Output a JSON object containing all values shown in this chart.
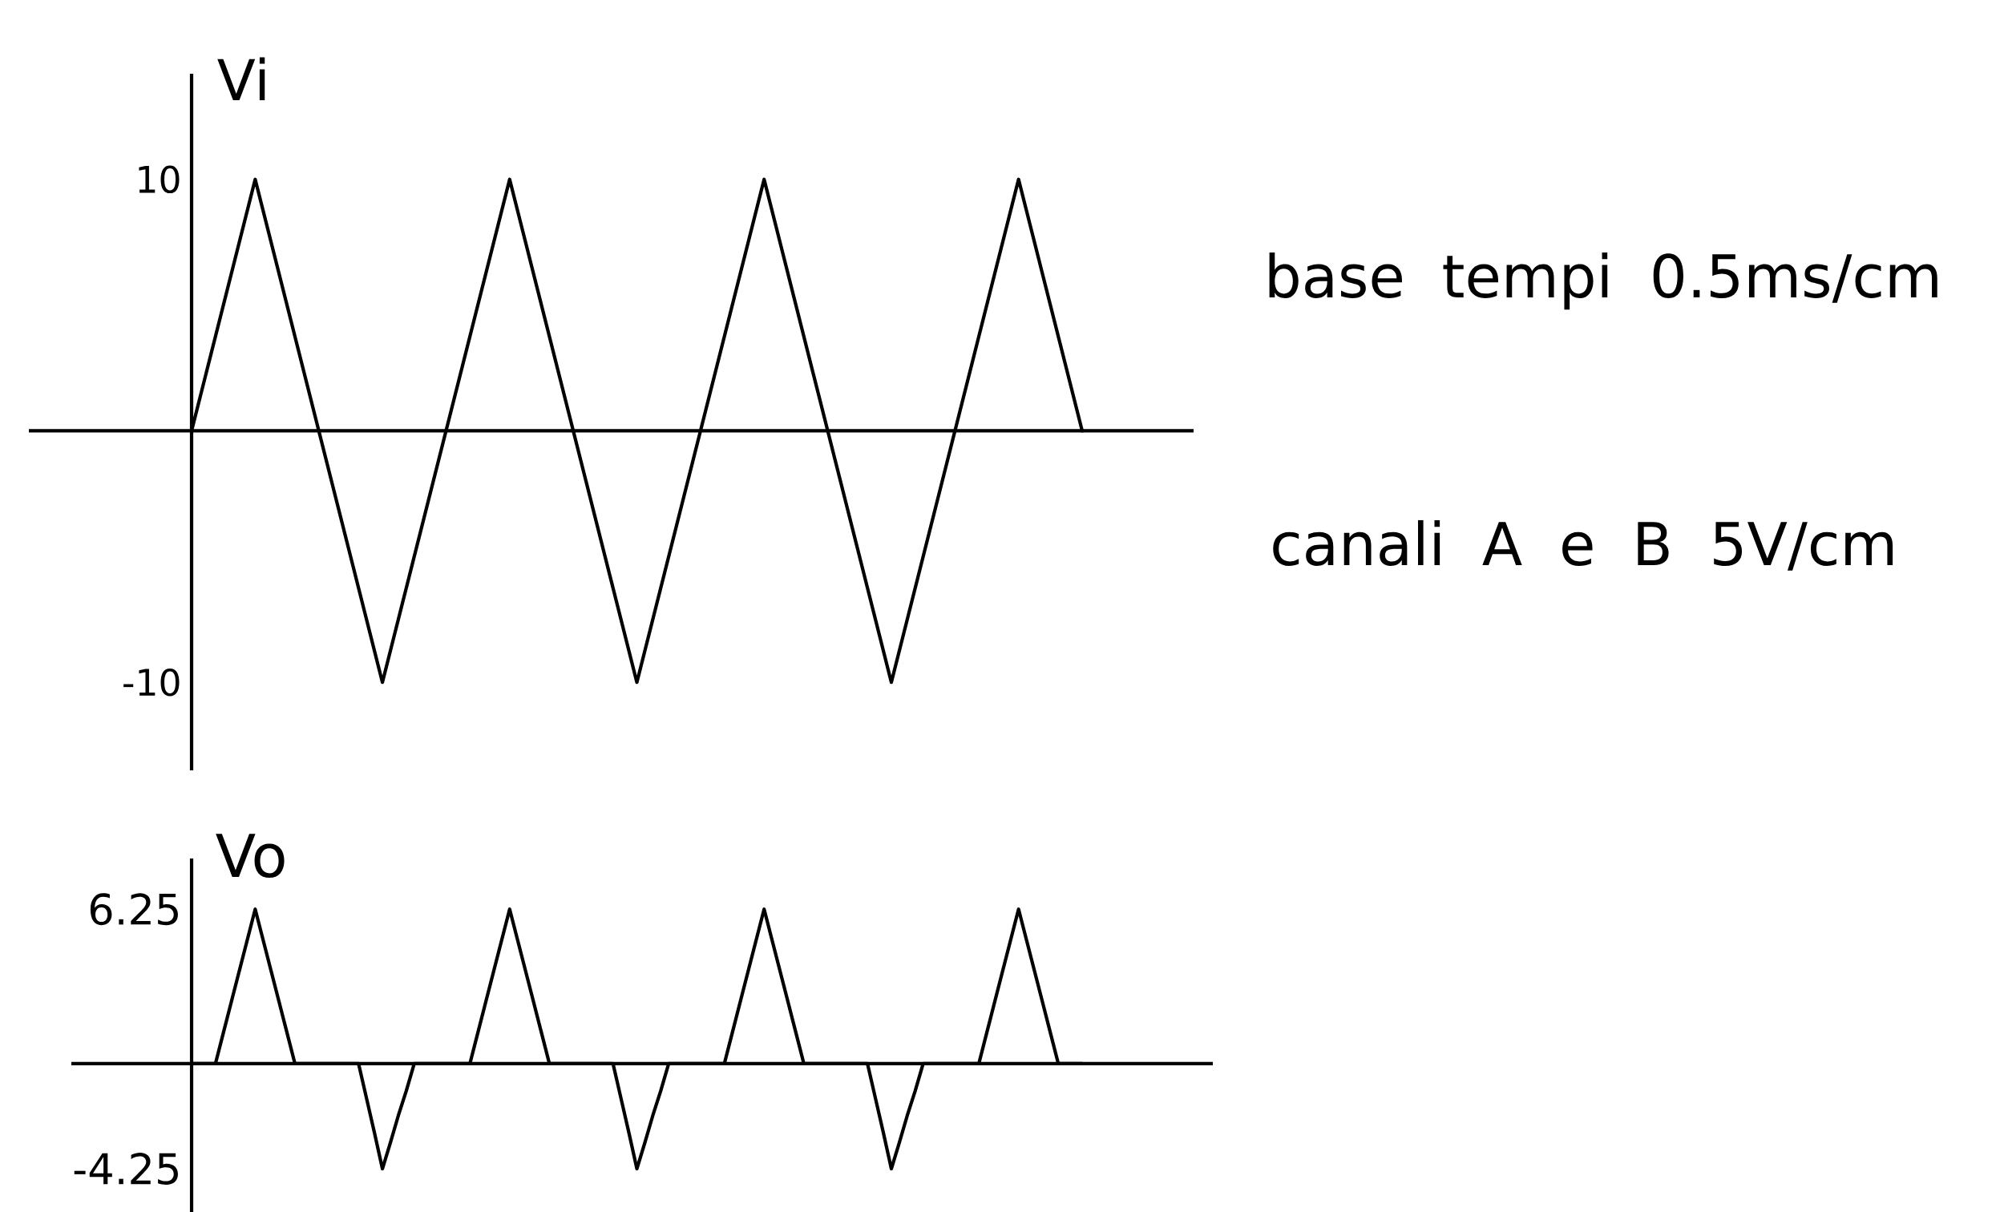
{
  "chart_data": [
    {
      "type": "line",
      "ylabel": "Vi",
      "categories": [
        null,
        null,
        null,
        null,
        null,
        null,
        null,
        null,
        null,
        null,
        null,
        null,
        null,
        null,
        null
      ],
      "series": [
        {
          "color": "#000000",
          "values": [
            0,
            10,
            0,
            -10,
            0,
            10,
            0,
            -10,
            0,
            10,
            0,
            -10,
            0,
            10,
            0
          ]
        }
      ],
      "ylim": [
        -13.5,
        14.2
      ],
      "yticks": [
        -10,
        10
      ],
      "tick_labels": "y",
      "annotations": [
        "base tempi 0.5ms/cm",
        "canali A e B 5V/cm"
      ]
    },
    {
      "type": "line",
      "ylabel": "Vo",
      "categories": [
        null,
        null,
        null,
        null,
        null,
        null,
        null,
        null,
        null,
        null,
        null,
        null,
        null,
        null,
        null,
        null,
        null,
        null,
        null,
        null,
        null,
        null,
        null,
        null,
        null,
        null,
        null,
        null,
        null,
        null,
        null,
        null,
        null,
        null,
        null,
        null,
        null,
        null,
        null,
        null,
        null,
        null,
        null,
        null,
        null,
        null,
        null,
        null,
        null,
        null,
        null,
        null,
        null,
        null,
        null,
        null,
        null,
        null,
        null,
        null,
        null,
        null,
        null,
        null,
        null,
        null,
        null,
        null,
        null,
        null,
        null,
        null,
        null,
        null,
        null,
        null,
        null,
        null,
        null,
        null,
        null,
        null,
        null,
        null,
        null,
        null,
        null,
        null,
        null,
        null,
        null,
        null,
        null,
        null,
        null,
        null,
        null,
        null,
        null,
        null,
        null,
        null,
        null,
        null,
        null,
        null,
        null,
        null,
        null,
        null,
        null,
        null,
        null
      ],
      "series": [
        {
          "color": "#000000",
          "values": [
            0,
            0,
            0,
            0,
            1.25,
            2.5,
            3.75,
            5,
            6.25,
            5,
            3.75,
            2.5,
            1.25,
            0,
            0,
            0,
            0,
            0,
            0,
            0,
            0,
            0,
            -1.4,
            -2.8,
            -4.25,
            -3.2,
            -2.1,
            -1.1,
            0,
            0,
            0,
            0,
            0,
            0,
            0,
            0,
            1.25,
            2.5,
            3.75,
            5,
            6.25,
            5,
            3.75,
            2.5,
            1.25,
            0,
            0,
            0,
            0,
            0,
            0,
            0,
            0,
            0,
            -1.4,
            -2.8,
            -4.25,
            -3.2,
            -2.1,
            -1.1,
            0,
            0,
            0,
            0,
            0,
            0,
            0,
            0,
            1.25,
            2.5,
            3.75,
            5,
            6.25,
            5,
            3.75,
            2.5,
            1.25,
            0,
            0,
            0,
            0,
            0,
            0,
            0,
            0,
            0,
            -1.4,
            -2.8,
            -4.25,
            -3.2,
            -2.1,
            -1.1,
            0,
            0,
            0,
            0,
            0,
            0,
            0,
            0,
            1.25,
            2.5,
            3.75,
            5,
            6.25,
            5,
            3.75,
            2.5,
            1.25,
            0,
            0,
            0,
            0
          ]
        }
      ],
      "ylim": [
        -6,
        8.3
      ],
      "yticks": [
        -4.25,
        6.25
      ],
      "tick_labels": "y"
    }
  ]
}
